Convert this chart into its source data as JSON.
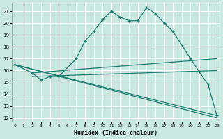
{
  "xlabel": "Humidex (Indice chaleur)",
  "bg_color": "#c8e8e0",
  "grid_color": "#ffffff",
  "line_color": "#1a7a6e",
  "xlim": [
    -0.3,
    23.3
  ],
  "ylim": [
    11.7,
    21.7
  ],
  "yticks": [
    12,
    13,
    14,
    15,
    16,
    17,
    18,
    19,
    20,
    21
  ],
  "xticks": [
    0,
    1,
    2,
    3,
    4,
    5,
    6,
    7,
    8,
    9,
    10,
    11,
    12,
    13,
    14,
    15,
    16,
    17,
    18,
    19,
    20,
    21,
    22,
    23
  ],
  "lines": [
    {
      "x": [
        0,
        23
      ],
      "y": [
        16.5,
        12.0
      ],
      "marker": false
    },
    {
      "x": [
        0,
        23
      ],
      "y": [
        16.5,
        12.2
      ],
      "marker": false
    },
    {
      "x": [
        2,
        23
      ],
      "y": [
        15.8,
        17.0
      ],
      "marker": false
    },
    {
      "x": [
        2,
        23
      ],
      "y": [
        15.5,
        16.0
      ],
      "marker": false
    },
    {
      "x": [
        0,
        2,
        3,
        4,
        5,
        7,
        8,
        9,
        10,
        11,
        12,
        13,
        14,
        15,
        16,
        17,
        18,
        20,
        21,
        22,
        23
      ],
      "y": [
        16.5,
        15.8,
        15.2,
        15.5,
        15.5,
        17.0,
        18.5,
        19.3,
        20.3,
        21.0,
        20.5,
        20.2,
        20.2,
        21.3,
        20.8,
        20.0,
        19.3,
        17.0,
        15.9,
        14.8,
        12.2
      ],
      "marker": true
    }
  ]
}
